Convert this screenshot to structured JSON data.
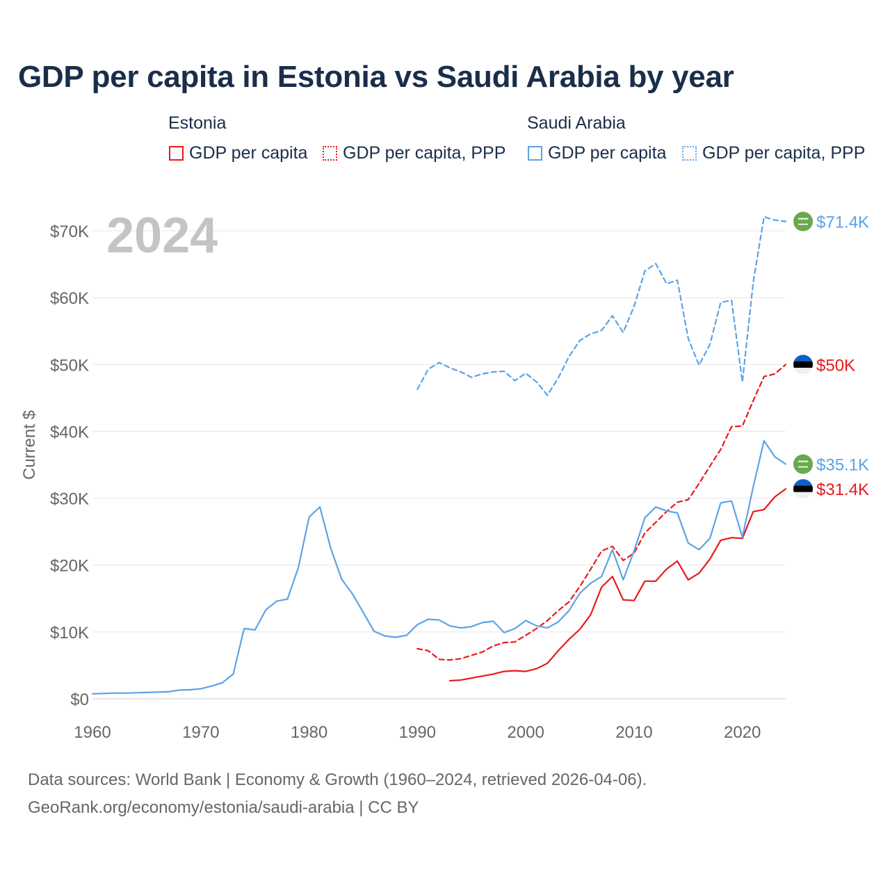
{
  "title": "GDP per capita in Estonia vs Saudi Arabia by year",
  "legend": {
    "estonia": {
      "name": "Estonia",
      "items": [
        "GDP per capita",
        "GDP per capita, PPP"
      ]
    },
    "saudi": {
      "name": "Saudi Arabia",
      "items": [
        "GDP per capita",
        "GDP per capita, PPP"
      ]
    }
  },
  "colors": {
    "estonia": "#e8191c",
    "saudi": "#5ba3e6",
    "title": "#1a2e4a",
    "grid": "#e5e5e5",
    "axis_text": "#666666",
    "year_watermark": "#c4c4c4",
    "flag_saudi": "#6aa84f",
    "flag_estonia_blue": "#0a62c8"
  },
  "chart_data": {
    "type": "line",
    "current_year_label": "2024",
    "ylabel": "Current $",
    "xlim": [
      1960,
      2024
    ],
    "ylim": [
      0,
      70000
    ],
    "x_ticks": [
      1960,
      1970,
      1980,
      1990,
      2000,
      2010,
      2020
    ],
    "x_tick_labels": [
      "1960",
      "1970",
      "1980",
      "1990",
      "2000",
      "2010",
      "2020"
    ],
    "y_ticks": [
      0,
      10000,
      20000,
      30000,
      40000,
      50000,
      60000,
      70000
    ],
    "y_tick_labels": [
      "$0",
      "$10K",
      "$20K",
      "$30K",
      "$40K",
      "$50K",
      "$60K",
      "$70K"
    ],
    "series": [
      {
        "name": "Estonia GDP per capita",
        "country": "estonia",
        "style": "solid",
        "end_label": "$31.4K",
        "x": [
          1993,
          1994,
          1995,
          1996,
          1997,
          1998,
          1999,
          2000,
          2001,
          2002,
          2003,
          2004,
          2005,
          2006,
          2007,
          2008,
          2009,
          2010,
          2011,
          2012,
          2013,
          2014,
          2015,
          2016,
          2017,
          2018,
          2019,
          2020,
          2021,
          2022,
          2023,
          2024
        ],
        "values": [
          2700,
          2800,
          3100,
          3400,
          3700,
          4100,
          4200,
          4100,
          4500,
          5300,
          7200,
          8900,
          10400,
          12600,
          16700,
          18300,
          14800,
          14700,
          17600,
          17600,
          19400,
          20600,
          17800,
          18800,
          20900,
          23700,
          24100,
          24000,
          28000,
          28300,
          30200,
          31400
        ]
      },
      {
        "name": "Estonia GDP per capita, PPP",
        "country": "estonia",
        "style": "dashed",
        "end_label": "$50K",
        "x": [
          1990,
          1991,
          1992,
          1993,
          1994,
          1995,
          1996,
          1997,
          1998,
          1999,
          2000,
          2001,
          2002,
          2003,
          2004,
          2005,
          2006,
          2007,
          2008,
          2009,
          2010,
          2011,
          2012,
          2013,
          2014,
          2015,
          2016,
          2017,
          2018,
          2019,
          2020,
          2021,
          2022,
          2023,
          2024
        ],
        "values": [
          7500,
          7200,
          5900,
          5800,
          6000,
          6500,
          7000,
          7900,
          8400,
          8500,
          9500,
          10500,
          11700,
          13200,
          14500,
          16800,
          19400,
          22100,
          22800,
          20700,
          21800,
          24800,
          26400,
          28000,
          29400,
          29800,
          32200,
          34800,
          37300,
          40700,
          40800,
          44600,
          48200,
          48600,
          50000
        ]
      },
      {
        "name": "Saudi Arabia GDP per capita",
        "country": "saudi",
        "style": "solid",
        "end_label": "$35.1K",
        "x": [
          1960,
          1961,
          1962,
          1963,
          1964,
          1965,
          1966,
          1967,
          1968,
          1969,
          1970,
          1971,
          1972,
          1973,
          1974,
          1975,
          1976,
          1977,
          1978,
          1979,
          1980,
          1981,
          1982,
          1983,
          1984,
          1985,
          1986,
          1987,
          1988,
          1989,
          1990,
          1991,
          1992,
          1993,
          1994,
          1995,
          1996,
          1997,
          1998,
          1999,
          2000,
          2001,
          2002,
          2003,
          2004,
          2005,
          2006,
          2007,
          2008,
          2009,
          2010,
          2011,
          2012,
          2013,
          2014,
          2015,
          2016,
          2017,
          2018,
          2019,
          2020,
          2021,
          2022,
          2023,
          2024
        ],
        "values": [
          750,
          800,
          850,
          850,
          900,
          950,
          1000,
          1050,
          1300,
          1350,
          1500,
          1900,
          2400,
          3700,
          10500,
          10300,
          13300,
          14600,
          14900,
          19600,
          27200,
          28700,
          22500,
          17900,
          15700,
          12900,
          10100,
          9400,
          9200,
          9500,
          11100,
          11900,
          11800,
          10900,
          10600,
          10800,
          11400,
          11600,
          9900,
          10500,
          11700,
          10900,
          10600,
          11500,
          13200,
          15800,
          17300,
          18300,
          22300,
          17800,
          22100,
          27100,
          28700,
          28100,
          27800,
          23300,
          22300,
          24000,
          29300,
          29600,
          24200,
          31700,
          38600,
          36200,
          35100
        ]
      },
      {
        "name": "Saudi Arabia GDP per capita, PPP",
        "country": "saudi",
        "style": "dashed",
        "end_label": "$71.4K",
        "x": [
          1990,
          1991,
          1992,
          1993,
          1994,
          1995,
          1996,
          1997,
          1998,
          1999,
          2000,
          2001,
          2002,
          2003,
          2004,
          2005,
          2006,
          2007,
          2008,
          2009,
          2010,
          2011,
          2012,
          2013,
          2014,
          2015,
          2016,
          2017,
          2018,
          2019,
          2020,
          2021,
          2022,
          2023,
          2024
        ],
        "values": [
          46300,
          49300,
          50300,
          49500,
          48900,
          48100,
          48600,
          48900,
          49000,
          47600,
          48700,
          47400,
          45400,
          48000,
          51200,
          53600,
          54600,
          55100,
          57300,
          54800,
          58700,
          64000,
          65100,
          62100,
          62600,
          53900,
          49900,
          53000,
          59300,
          59600,
          47400,
          62300,
          72100,
          71600,
          71400
        ]
      }
    ]
  },
  "footer": {
    "line1": "Data sources: World Bank | Economy & Growth (1960–2024, retrieved 2026-04-06).",
    "line2": "GeoRank.org/economy/estonia/saudi-arabia | CC BY"
  }
}
